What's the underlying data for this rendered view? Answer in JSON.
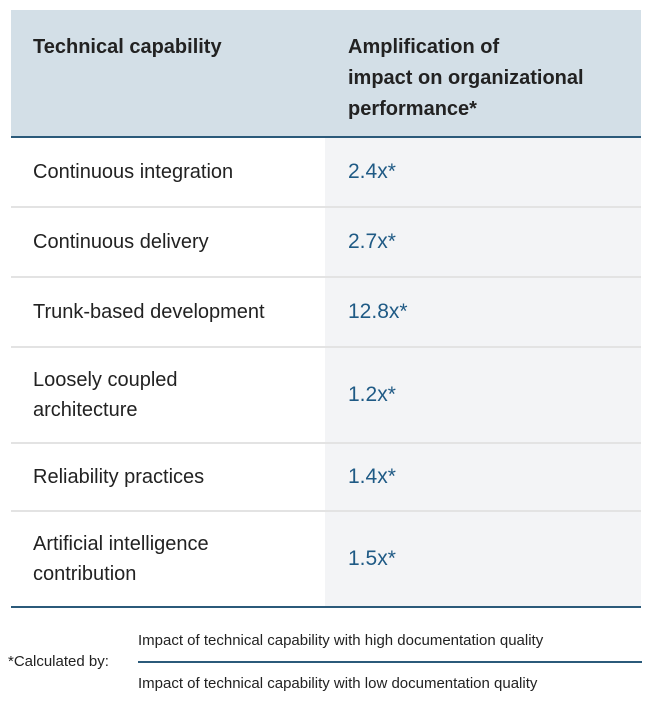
{
  "header": {
    "col1": "Technical capability",
    "col2_lines": [
      "Amplification of",
      "impact on organizational",
      "performance*"
    ]
  },
  "rows": [
    {
      "capability_lines": [
        "Continuous integration"
      ],
      "value": "2.4x*"
    },
    {
      "capability_lines": [
        "Continuous delivery"
      ],
      "value": "2.7x*"
    },
    {
      "capability_lines": [
        "Trunk-based development"
      ],
      "value": "12.8x*"
    },
    {
      "capability_lines": [
        "Loosely coupled",
        "architecture"
      ],
      "value": "1.2x*"
    },
    {
      "capability_lines": [
        "Reliability practices"
      ],
      "value": "1.4x*"
    },
    {
      "capability_lines": [
        "Artificial intelligence",
        "contribution"
      ],
      "value": "1.5x*"
    }
  ],
  "footnote": {
    "label": "*Calculated by:",
    "numerator": "Impact of technical capability with high documentation quality",
    "denominator": "Impact of technical capability with low documentation quality"
  }
}
